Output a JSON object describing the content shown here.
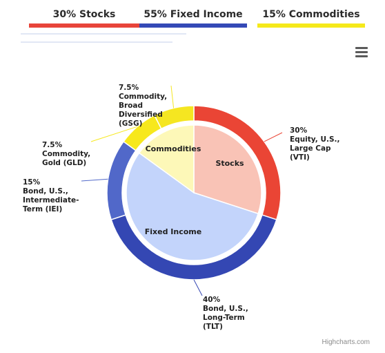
{
  "chart_data": {
    "type": "pie",
    "title": "",
    "legend": [
      {
        "label": "30% Stocks",
        "color": "#e8443a"
      },
      {
        "label": "55% Fixed Income",
        "color": "#3449b6"
      },
      {
        "label": "15% Commodities",
        "color": "#f5e91b"
      }
    ],
    "inner": [
      {
        "name": "Stocks",
        "value": 30,
        "color": "#f9c3b6"
      },
      {
        "name": "Fixed Income",
        "value": 55,
        "color": "#c3d4fb"
      },
      {
        "name": "Commodities",
        "value": 15,
        "color": "#fdf8b8"
      }
    ],
    "outer": [
      {
        "value": 30,
        "lines": [
          "30%",
          "Equity, U.S.,",
          "Large Cap",
          "(VTI)"
        ],
        "color": "#ea4535"
      },
      {
        "value": 40,
        "lines": [
          "40%",
          "Bond, U.S.,",
          "Long-Term",
          "(TLT)"
        ],
        "color": "#3447b3"
      },
      {
        "value": 15,
        "lines": [
          "15%",
          "Bond, U.S.,",
          "Intermediate-",
          "Term (IEI)"
        ],
        "color": "#5168c9"
      },
      {
        "value": 7.5,
        "lines": [
          "7.5%",
          "Commodity,",
          "Gold (GLD)"
        ],
        "color": "#f7e81c"
      },
      {
        "value": 7.5,
        "lines": [
          "7.5%",
          "Commodity,",
          "Broad",
          "Diversified",
          "(GSG)"
        ],
        "color": "#f5e621"
      }
    ]
  },
  "credit": "Highcharts.com",
  "menu_icon": "hamburger-menu-icon"
}
